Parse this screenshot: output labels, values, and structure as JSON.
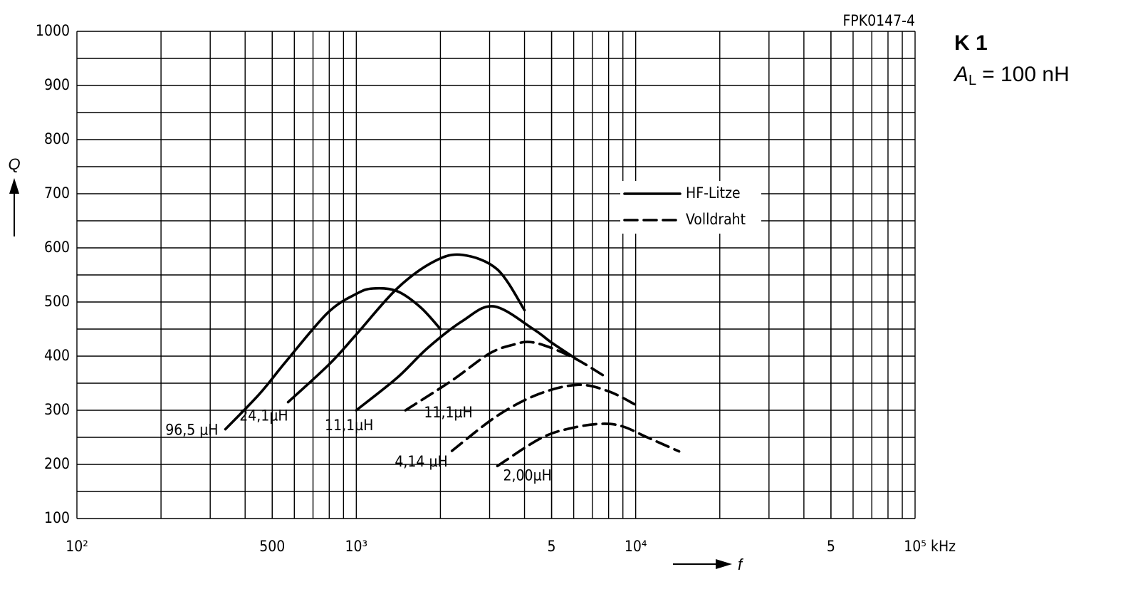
{
  "chart_data": {
    "type": "line",
    "code": "FPK0147-4",
    "note": {
      "line1": "K 1",
      "symbol": "A",
      "subscript": "L",
      "text": "= 100 nH"
    },
    "xlabel": "f",
    "ylabel": "Q",
    "xunit": "kHz",
    "xscale": "log",
    "xlim": [
      100,
      100000
    ],
    "ylim": [
      100,
      1000
    ],
    "xticks": [
      {
        "value": 100,
        "label": "10²"
      },
      500,
      {
        "value": 1000,
        "label": "10³"
      },
      {
        "value": 5000,
        "label": "5"
      },
      {
        "value": 10000,
        "label": "10⁴"
      },
      {
        "value": 50000,
        "label": "5"
      },
      {
        "value": 100000,
        "label": "10⁵"
      }
    ],
    "yticks": [
      100,
      200,
      300,
      400,
      500,
      600,
      700,
      800,
      900,
      1000
    ],
    "grid": true,
    "color": "#000000",
    "legend": [
      {
        "label": "HF-Litze",
        "style": "solid"
      },
      {
        "label": "Volldraht",
        "style": "dashed"
      }
    ],
    "series": [
      {
        "name": "96,5 µH",
        "style": "solid",
        "x": [
          340,
          450,
          560,
          790,
          1000,
          1150,
          1400,
          1700,
          2000
        ],
        "values": [
          265,
          330,
          390,
          480,
          515,
          525,
          520,
          490,
          450
        ]
      },
      {
        "name": "24,1µH",
        "style": "solid",
        "x": [
          570,
          800,
          1000,
          1400,
          1900,
          2400,
          3200,
          4000
        ],
        "values": [
          315,
          385,
          440,
          525,
          575,
          587,
          560,
          485
        ]
      },
      {
        "name": "11,1µH",
        "style": "solid",
        "x": [
          1000,
          1400,
          1800,
          2400,
          3100,
          4300,
          5000,
          6200
        ],
        "values": [
          300,
          360,
          415,
          465,
          492,
          450,
          425,
          393
        ]
      },
      {
        "name": "11,1µH",
        "style": "dashed",
        "x": [
          1500,
          2200,
          3000,
          3700,
          4200,
          5000,
          6200,
          7900
        ],
        "values": [
          300,
          355,
          405,
          422,
          426,
          415,
          393,
          360
        ]
      },
      {
        "name": "4,14 µH",
        "style": "dashed",
        "x": [
          2200,
          3200,
          4500,
          6200,
          8000,
          10000
        ],
        "values": [
          225,
          290,
          330,
          347,
          335,
          310
        ]
      },
      {
        "name": "2,00µH",
        "style": "dashed",
        "x": [
          3200,
          4600,
          6000,
          7600,
          9000,
          11000,
          14300
        ],
        "values": [
          197,
          249,
          268,
          275,
          270,
          250,
          224
        ]
      }
    ]
  }
}
